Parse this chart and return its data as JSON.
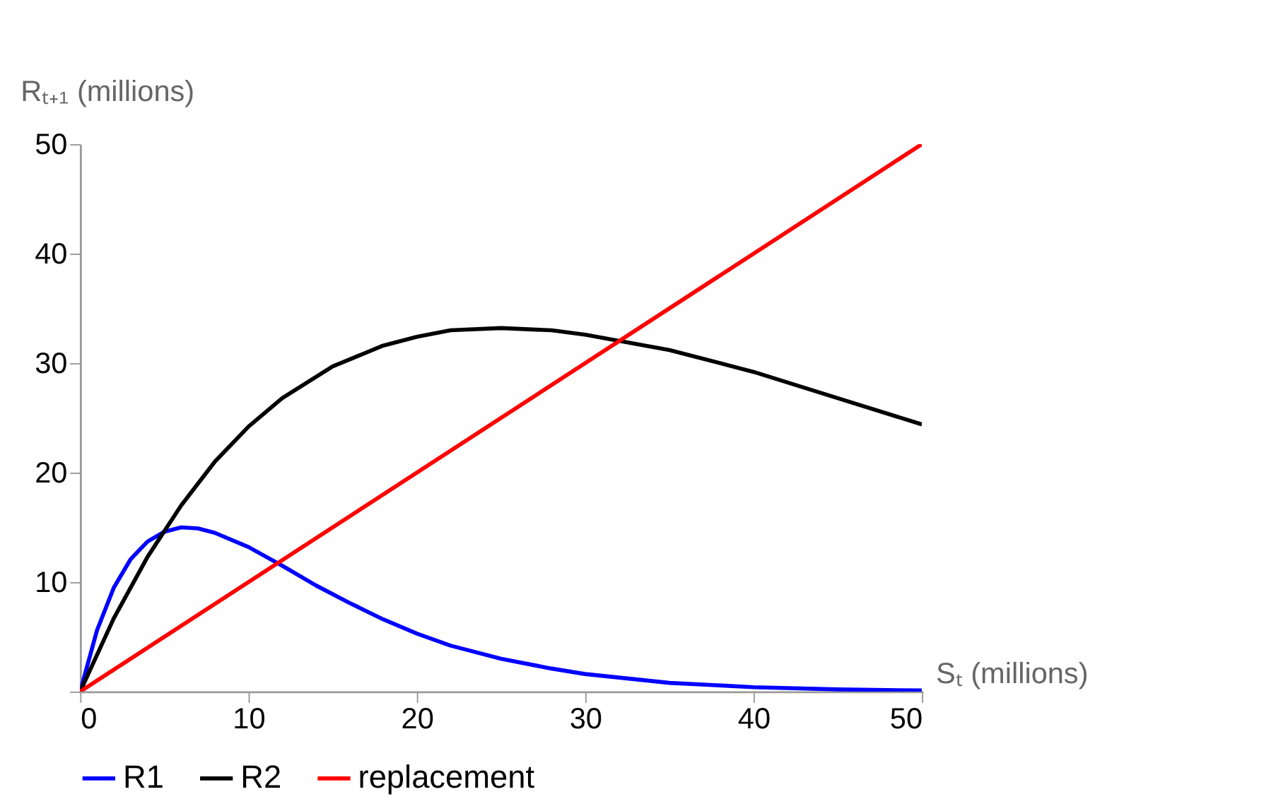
{
  "chart_data": {
    "type": "line",
    "xlabel": "Sₜ (millions)",
    "ylabel": "Rₜ₊₁ (millions)",
    "xlim": [
      0,
      50
    ],
    "ylim": [
      0,
      50
    ],
    "xticks": [
      0,
      10,
      20,
      30,
      40,
      50
    ],
    "yticks": [
      {
        "value": 0,
        "label": null
      },
      10,
      20,
      30,
      40,
      50
    ],
    "grid": false,
    "legend": "bottom",
    "marker": "none",
    "line_style": "solid",
    "series": [
      {
        "name": "R1",
        "color": "#0000ff",
        "x": [
          0,
          1,
          2,
          3,
          4,
          5,
          6,
          7,
          8,
          10,
          12,
          14,
          16,
          18,
          20,
          22,
          25,
          28,
          30,
          35,
          40,
          45,
          50
        ],
        "values": [
          0,
          5.6,
          9.5,
          12.1,
          13.7,
          14.6,
          15.0,
          14.9,
          14.5,
          13.2,
          11.5,
          9.7,
          8.1,
          6.6,
          5.3,
          4.2,
          3.0,
          2.1,
          1.6,
          0.8,
          0.4,
          0.2,
          0.1
        ]
      },
      {
        "name": "R2",
        "color": "#000000",
        "x": [
          0,
          2,
          4,
          6,
          8,
          10,
          12,
          15,
          18,
          20,
          22,
          25,
          28,
          30,
          35,
          40,
          45,
          50
        ],
        "values": [
          0,
          6.7,
          12.3,
          17.0,
          21.0,
          24.2,
          26.8,
          29.7,
          31.6,
          32.4,
          33.0,
          33.2,
          33.0,
          32.6,
          31.2,
          29.2,
          26.8,
          24.4
        ]
      },
      {
        "name": "replacement",
        "color": "#ff0000",
        "x": [
          0,
          50
        ],
        "values": [
          0,
          50
        ]
      }
    ]
  }
}
